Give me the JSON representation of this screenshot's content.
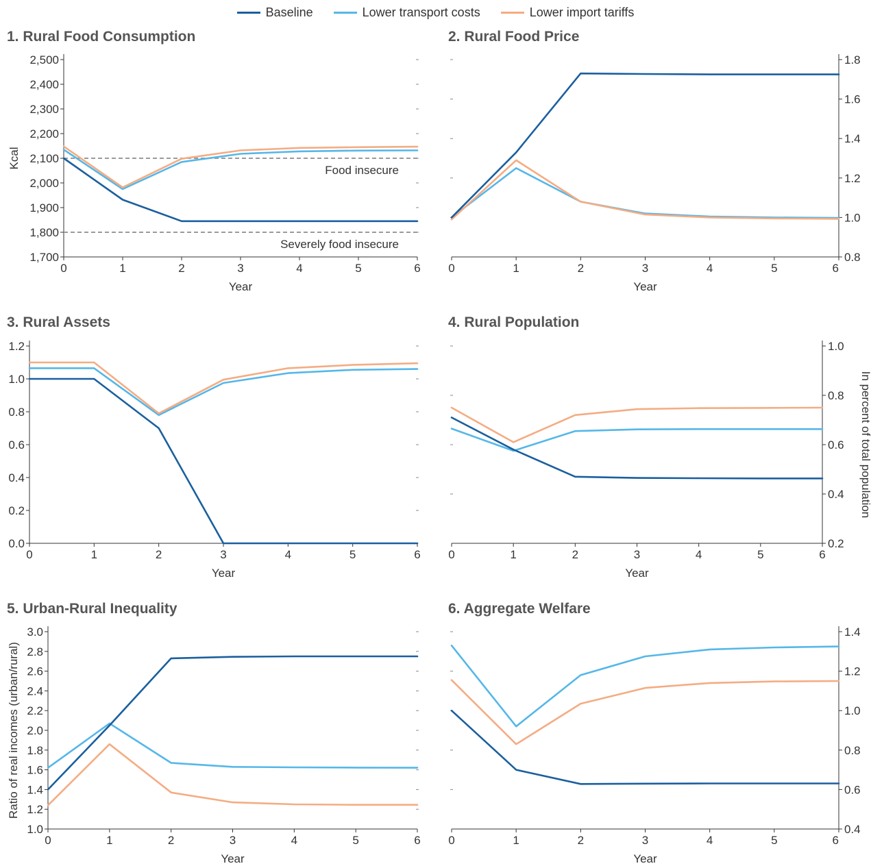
{
  "legend": [
    {
      "name": "Baseline",
      "color": "#1a5f9e"
    },
    {
      "name": "Lower transport costs",
      "color": "#55b7e8"
    },
    {
      "name": "Lower import tariffs",
      "color": "#f4ac83"
    }
  ],
  "chart_data": [
    {
      "type": "line",
      "title": "1. Rural Food Consumption",
      "xlabel": "Year",
      "ylabel": "Kcal",
      "yaxis_side": "left",
      "x": [
        0,
        1,
        2,
        3,
        4,
        5,
        6
      ],
      "xlim": [
        0,
        6
      ],
      "ylim": [
        1700,
        2500
      ],
      "yticks": [
        1700,
        1800,
        1900,
        2000,
        2100,
        2200,
        2300,
        2400,
        2500
      ],
      "ytick_labels": [
        "1,700",
        "1,800",
        "1,900",
        "2,000",
        "2,100",
        "2,200",
        "2,300",
        "2,400",
        "2,500"
      ],
      "series": [
        {
          "name": "Baseline",
          "values": [
            2100,
            1932,
            1845,
            1845,
            1845,
            1845,
            1845
          ]
        },
        {
          "name": "Lower transport costs",
          "values": [
            2135,
            1975,
            2085,
            2118,
            2128,
            2131,
            2132
          ]
        },
        {
          "name": "Lower import tariffs",
          "values": [
            2148,
            1982,
            2098,
            2132,
            2142,
            2145,
            2147
          ]
        }
      ],
      "reference_lines": [
        {
          "y": 2100,
          "label": "Food insecure"
        },
        {
          "y": 1800,
          "label": "Severely food insecure"
        }
      ]
    },
    {
      "type": "line",
      "title": "2. Rural Food Price",
      "xlabel": "Year",
      "ylabel": "",
      "yaxis_side": "right",
      "x": [
        0,
        1,
        2,
        3,
        4,
        5,
        6
      ],
      "xlim": [
        0,
        6
      ],
      "ylim": [
        0.8,
        1.8
      ],
      "yticks": [
        0.8,
        1.0,
        1.2,
        1.4,
        1.6,
        1.8
      ],
      "ytick_labels": [
        "0.8",
        "1.0",
        "1.2",
        "1.4",
        "1.6",
        "1.8"
      ],
      "series": [
        {
          "name": "Baseline",
          "values": [
            1.0,
            1.33,
            1.73,
            1.727,
            1.725,
            1.725,
            1.725
          ]
        },
        {
          "name": "Lower transport costs",
          "values": [
            1.0,
            1.25,
            1.08,
            1.02,
            1.005,
            1.0,
            0.998
          ]
        },
        {
          "name": "Lower import tariffs",
          "values": [
            0.99,
            1.29,
            1.08,
            1.015,
            1.0,
            0.995,
            0.993
          ]
        }
      ],
      "reference_lines": []
    },
    {
      "type": "line",
      "title": "3. Rural Assets",
      "xlabel": "Year",
      "ylabel": "",
      "yaxis_side": "left",
      "x": [
        0,
        1,
        2,
        3,
        4,
        5,
        6
      ],
      "xlim": [
        0,
        6
      ],
      "ylim": [
        0,
        1.2
      ],
      "yticks": [
        0,
        0.2,
        0.4,
        0.6,
        0.8,
        1.0,
        1.2
      ],
      "ytick_labels": [
        "0.0",
        "0.2",
        "0.4",
        "0.6",
        "0.8",
        "1.0",
        "1.2"
      ],
      "series": [
        {
          "name": "Baseline",
          "values": [
            1.0,
            1.0,
            0.7,
            0.0,
            0.0,
            0.0,
            0.0
          ]
        },
        {
          "name": "Lower transport costs",
          "values": [
            1.065,
            1.065,
            0.78,
            0.975,
            1.035,
            1.055,
            1.06
          ]
        },
        {
          "name": "Lower import tariffs",
          "values": [
            1.1,
            1.1,
            0.79,
            0.995,
            1.065,
            1.085,
            1.095
          ]
        }
      ],
      "reference_lines": []
    },
    {
      "type": "line",
      "title": "4. Rural Population",
      "xlabel": "Year",
      "ylabel": "In percent of total population",
      "yaxis_side": "right",
      "x": [
        0,
        1,
        2,
        3,
        4,
        5,
        6
      ],
      "xlim": [
        0,
        6
      ],
      "ylim": [
        0.2,
        1.0
      ],
      "yticks": [
        0.2,
        0.4,
        0.6,
        0.8,
        1.0
      ],
      "ytick_labels": [
        "0.2",
        "0.4",
        "0.6",
        "0.8",
        "1.0"
      ],
      "series": [
        {
          "name": "Baseline",
          "values": [
            0.71,
            0.58,
            0.47,
            0.465,
            0.464,
            0.463,
            0.463
          ]
        },
        {
          "name": "Lower transport costs",
          "values": [
            0.665,
            0.575,
            0.655,
            0.662,
            0.663,
            0.663,
            0.663
          ]
        },
        {
          "name": "Lower import tariffs",
          "values": [
            0.75,
            0.61,
            0.72,
            0.744,
            0.748,
            0.749,
            0.75
          ]
        }
      ],
      "reference_lines": []
    },
    {
      "type": "line",
      "title": "5. Urban-Rural Inequality",
      "xlabel": "Year",
      "ylabel": "Ratio of real incomes (urban/rural)",
      "yaxis_side": "left",
      "x": [
        0,
        1,
        2,
        3,
        4,
        5,
        6
      ],
      "xlim": [
        0,
        6
      ],
      "ylim": [
        1.0,
        3.0
      ],
      "yticks": [
        1.0,
        1.2,
        1.4,
        1.6,
        1.8,
        2.0,
        2.2,
        2.4,
        2.6,
        2.8,
        3.0
      ],
      "ytick_labels": [
        "1.0",
        "1.2",
        "1.4",
        "1.6",
        "1.8",
        "2.0",
        "2.2",
        "2.4",
        "2.6",
        "2.8",
        "3.0"
      ],
      "series": [
        {
          "name": "Baseline",
          "values": [
            1.4,
            2.05,
            2.73,
            2.745,
            2.75,
            2.75,
            2.75
          ]
        },
        {
          "name": "Lower transport costs",
          "values": [
            1.62,
            2.07,
            1.67,
            1.63,
            1.625,
            1.622,
            1.621
          ]
        },
        {
          "name": "Lower import tariffs",
          "values": [
            1.24,
            1.86,
            1.37,
            1.27,
            1.25,
            1.245,
            1.245
          ]
        }
      ],
      "reference_lines": []
    },
    {
      "type": "line",
      "title": "6. Aggregate Welfare",
      "xlabel": "Year",
      "ylabel": "",
      "yaxis_side": "right",
      "x": [
        0,
        1,
        2,
        3,
        4,
        5,
        6
      ],
      "xlim": [
        0,
        6
      ],
      "ylim": [
        0.4,
        1.4
      ],
      "yticks": [
        0.4,
        0.6,
        0.8,
        1.0,
        1.2,
        1.4
      ],
      "ytick_labels": [
        "0.4",
        "0.6",
        "0.8",
        "1.0",
        "1.2",
        "1.4"
      ],
      "series": [
        {
          "name": "Baseline",
          "values": [
            1.0,
            0.7,
            0.628,
            0.63,
            0.631,
            0.631,
            0.631
          ]
        },
        {
          "name": "Lower transport costs",
          "values": [
            1.33,
            0.92,
            1.18,
            1.275,
            1.31,
            1.32,
            1.325
          ]
        },
        {
          "name": "Lower import tariffs",
          "values": [
            1.155,
            0.83,
            1.035,
            1.115,
            1.14,
            1.148,
            1.15
          ]
        }
      ],
      "reference_lines": []
    }
  ]
}
